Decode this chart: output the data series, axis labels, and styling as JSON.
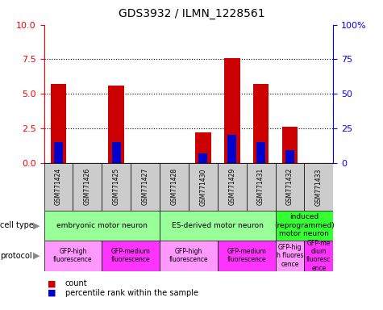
{
  "title": "GDS3932 / ILMN_1228561",
  "samples": [
    "GSM771424",
    "GSM771426",
    "GSM771425",
    "GSM771427",
    "GSM771428",
    "GSM771430",
    "GSM771429",
    "GSM771431",
    "GSM771432",
    "GSM771433"
  ],
  "counts": [
    5.7,
    0,
    5.6,
    0,
    0,
    2.2,
    7.6,
    5.7,
    2.6,
    0
  ],
  "percentile_ranks": [
    1.5,
    0,
    1.5,
    0,
    0,
    0.7,
    2.0,
    1.5,
    0.9,
    0
  ],
  "ylim_left": [
    0,
    10
  ],
  "ylim_right": [
    0,
    100
  ],
  "yticks_left": [
    0,
    2.5,
    5.0,
    7.5,
    10
  ],
  "yticks_right": [
    0,
    25,
    50,
    75,
    100
  ],
  "cell_type_groups": [
    {
      "label": "embryonic motor neuron",
      "start": 0,
      "end": 4,
      "color": "#99ff99"
    },
    {
      "label": "ES-derived motor neuron",
      "start": 4,
      "end": 8,
      "color": "#99ff99"
    },
    {
      "label": "induced\n(reprogrammed)\nmotor neuron",
      "start": 8,
      "end": 10,
      "color": "#33ff33"
    }
  ],
  "protocol_groups": [
    {
      "label": "GFP-high\nfluorescence",
      "start": 0,
      "end": 2,
      "color": "#ff99ff"
    },
    {
      "label": "GFP-medium\nfluorescence",
      "start": 2,
      "end": 4,
      "color": "#ff33ff"
    },
    {
      "label": "GFP-high\nfluorescence",
      "start": 4,
      "end": 6,
      "color": "#ff99ff"
    },
    {
      "label": "GFP-medium\nfluorescence",
      "start": 6,
      "end": 8,
      "color": "#ff33ff"
    },
    {
      "label": "GFP-hig\nh fluores\ncence",
      "start": 8,
      "end": 9,
      "color": "#ff99ff"
    },
    {
      "label": "GFP-me\ndium\nfluoresc\nence",
      "start": 9,
      "end": 10,
      "color": "#ff33ff"
    }
  ],
  "bar_color": "#cc0000",
  "percentile_color": "#0000cc",
  "sample_bg_color": "#cccccc",
  "legend_count_color": "#cc0000",
  "legend_pct_color": "#0000cc"
}
